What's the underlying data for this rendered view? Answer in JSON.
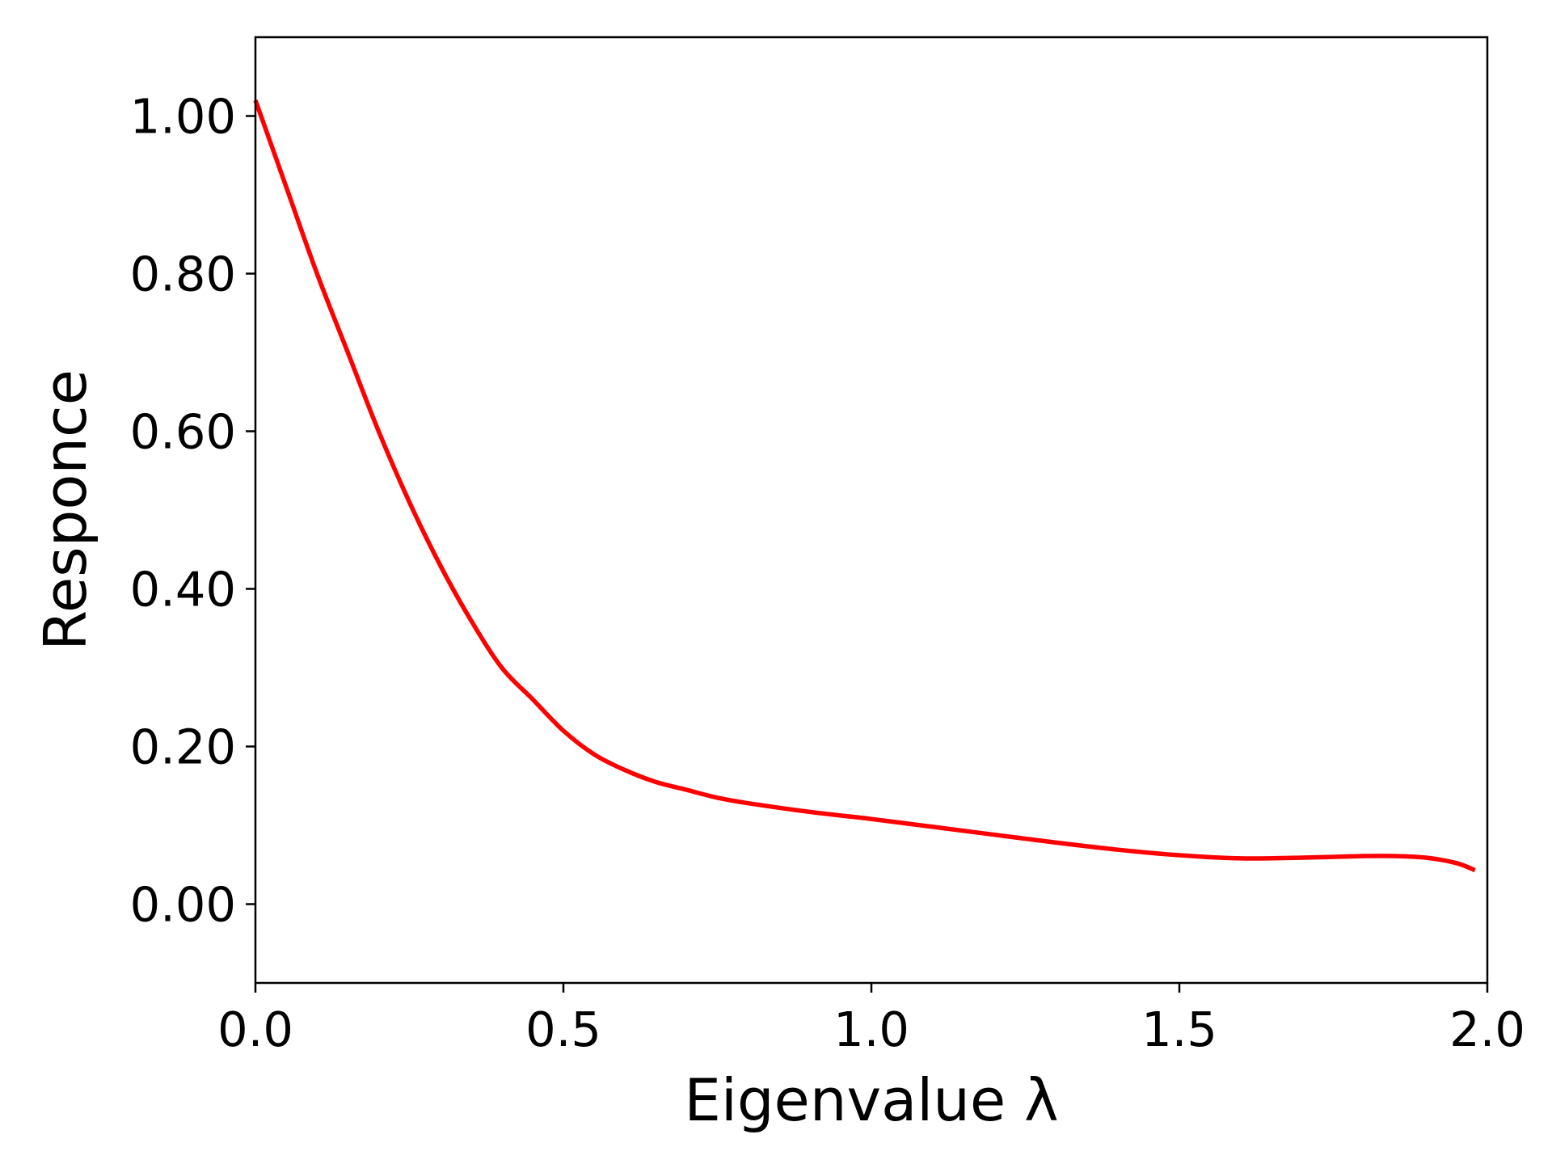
{
  "chart_data": {
    "type": "line",
    "title": "",
    "xlabel": "Eigenvalue λ",
    "ylabel": "Responce",
    "xlim": [
      0.0,
      2.0
    ],
    "ylim": [
      -0.1,
      1.1
    ],
    "xticks": [
      0.0,
      0.5,
      1.0,
      1.5,
      2.0
    ],
    "xtick_labels": [
      "0.0",
      "0.5",
      "1.0",
      "1.5",
      "2.0"
    ],
    "yticks": [
      0.0,
      0.2,
      0.4,
      0.6,
      0.8,
      1.0
    ],
    "ytick_labels": [
      "0.00",
      "0.20",
      "0.40",
      "0.60",
      "0.80",
      "1.00"
    ],
    "grid": false,
    "legend": "none",
    "series": [
      {
        "color": "#ff0000",
        "x": [
          0.0,
          0.05,
          0.1,
          0.15,
          0.2,
          0.25,
          0.3,
          0.35,
          0.4,
          0.45,
          0.5,
          0.55,
          0.6,
          0.65,
          0.7,
          0.75,
          0.8,
          0.9,
          1.0,
          1.1,
          1.2,
          1.3,
          1.4,
          1.5,
          1.6,
          1.7,
          1.8,
          1.85,
          1.9,
          1.95,
          1.98
        ],
        "y": [
          1.02,
          0.91,
          0.8,
          0.7,
          0.6,
          0.51,
          0.43,
          0.36,
          0.3,
          0.26,
          0.22,
          0.19,
          0.17,
          0.155,
          0.145,
          0.135,
          0.128,
          0.117,
          0.108,
          0.098,
          0.088,
          0.078,
          0.069,
          0.062,
          0.058,
          0.059,
          0.061,
          0.061,
          0.059,
          0.052,
          0.043
        ]
      }
    ]
  }
}
